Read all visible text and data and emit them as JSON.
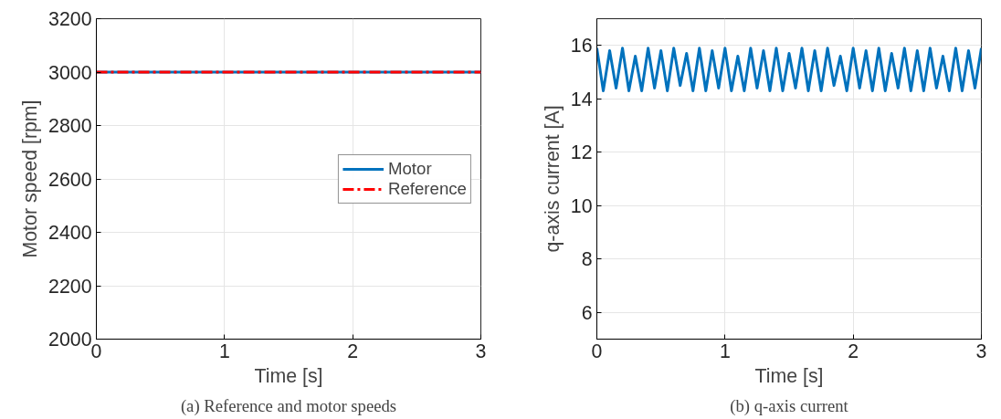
{
  "chart_data": [
    {
      "type": "line",
      "xlabel": "Time [s]",
      "ylabel": "Motor speed [rpm]",
      "xlim": [
        0,
        3
      ],
      "xticks": [
        0,
        1,
        2,
        3
      ],
      "ylim": [
        2000,
        3200
      ],
      "yticks": [
        2000,
        2200,
        2400,
        2600,
        2800,
        3000,
        3200
      ],
      "grid": true,
      "legend": "right",
      "series": [
        {
          "name": "Motor",
          "color": "#0072bd",
          "x": [
            0,
            3
          ],
          "values": [
            3000,
            3000
          ],
          "line_style": "solid"
        },
        {
          "name": "Reference",
          "color": "#ff0000",
          "x": [
            0,
            3
          ],
          "values": [
            3000,
            3000
          ],
          "line_style": "dashed"
        }
      ],
      "annotations": [
        "(a) Reference and motor speeds"
      ]
    },
    {
      "type": "line",
      "xlabel": "Time [s]",
      "ylabel": "q-axis current [A]",
      "xlim": [
        0,
        3
      ],
      "xticks": [
        0,
        1,
        2,
        3
      ],
      "ylim": [
        5,
        17
      ],
      "yticks": [
        6,
        8,
        10,
        12,
        14,
        16
      ],
      "grid": true,
      "series": [
        {
          "color": "#0072bd",
          "x": [
            0,
            0.05,
            0.1,
            0.15,
            0.2,
            0.25,
            0.3,
            0.35,
            0.4,
            0.45,
            0.5,
            0.55,
            0.6,
            0.65,
            0.7,
            0.75,
            0.8,
            0.85,
            0.9,
            0.95,
            1,
            1.05,
            1.1,
            1.15,
            1.2,
            1.25,
            1.3,
            1.35,
            1.4,
            1.45,
            1.5,
            1.55,
            1.6,
            1.65,
            1.7,
            1.75,
            1.8,
            1.85,
            1.9,
            1.95,
            2,
            2.05,
            2.1,
            2.15,
            2.2,
            2.25,
            2.3,
            2.35,
            2.4,
            2.45,
            2.5,
            2.55,
            2.6,
            2.65,
            2.7,
            2.75,
            2.8,
            2.85,
            2.9,
            2.95,
            3
          ],
          "values": [
            15.9,
            14.3,
            15.8,
            14.4,
            15.9,
            14.3,
            15.6,
            14.3,
            15.9,
            14.4,
            15.8,
            14.3,
            15.9,
            14.5,
            15.7,
            14.3,
            15.9,
            14.3,
            15.8,
            14.4,
            15.9,
            14.3,
            15.6,
            14.3,
            15.9,
            14.4,
            15.8,
            14.3,
            15.9,
            14.3,
            15.7,
            14.4,
            15.9,
            14.3,
            15.8,
            14.3,
            15.9,
            14.5,
            15.6,
            14.3,
            15.9,
            14.4,
            15.8,
            14.3,
            15.9,
            14.3,
            15.7,
            14.4,
            15.9,
            14.3,
            15.8,
            14.3,
            15.9,
            14.4,
            15.6,
            14.3,
            15.9,
            14.3,
            15.8,
            14.4,
            15.9
          ]
        }
      ],
      "annotations": [
        "(b) q-axis current"
      ]
    }
  ]
}
